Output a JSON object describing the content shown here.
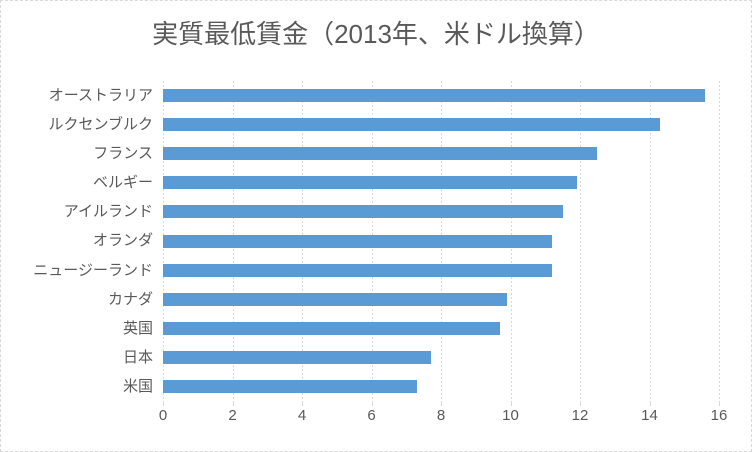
{
  "title": "実質最低賃金（2013年、米ドル換算）",
  "colors": {
    "bar": "#5B9BD5",
    "grid": "#D9D9D9",
    "axis_text": "#595959",
    "title_text": "#595959",
    "border": "#D9D9D9",
    "background": "#FFFFFF"
  },
  "chart_data": {
    "type": "bar",
    "orientation": "horizontal",
    "title": "実質最低賃金（2013年、米ドル換算）",
    "categories": [
      "オーストラリア",
      "ルクセンブルク",
      "フランス",
      "ベルギー",
      "アイルランド",
      "オランダ",
      "ニュージーランド",
      "カナダ",
      "英国",
      "日本",
      "米国"
    ],
    "values": [
      15.6,
      14.3,
      12.5,
      11.9,
      11.5,
      11.2,
      11.2,
      9.9,
      9.7,
      7.7,
      7.3
    ],
    "xlabel": "",
    "ylabel": "",
    "xlim": [
      0,
      16
    ],
    "xticks": [
      0,
      2,
      4,
      6,
      8,
      10,
      12,
      14,
      16
    ],
    "grid": true,
    "legend": false
  }
}
